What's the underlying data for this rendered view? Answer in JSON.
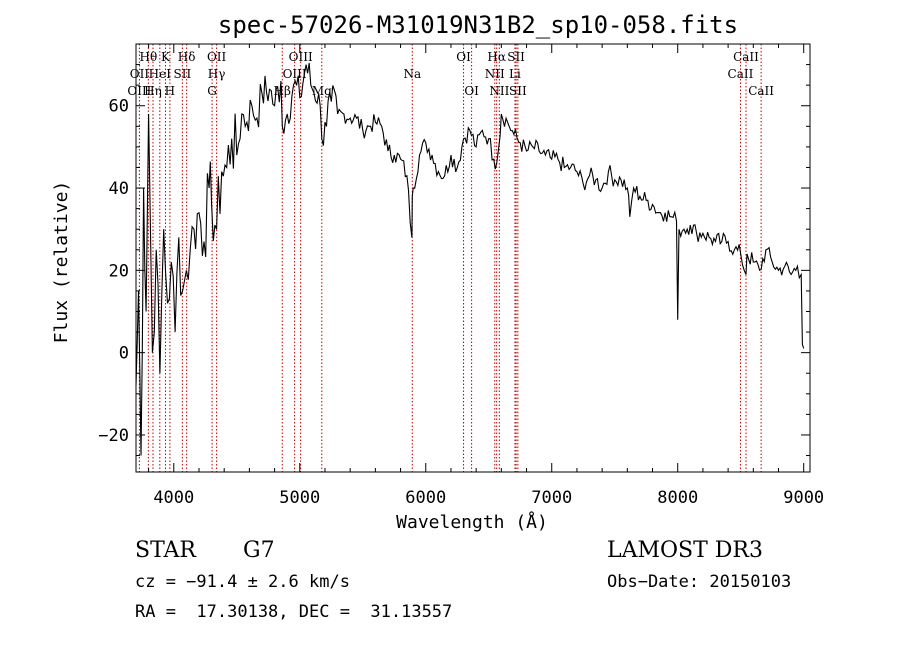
{
  "chart_data": {
    "type": "line",
    "title": "spec-57026-M31019N31B2_sp10-058.fits",
    "xlabel": "Wavelength (Å)",
    "ylabel": "Flux (relative)",
    "xlim": [
      3700,
      9050
    ],
    "ylim": [
      -29,
      75
    ],
    "xticks": [
      4000,
      5000,
      6000,
      7000,
      8000,
      9000
    ],
    "yticks": [
      -20,
      0,
      20,
      40,
      60
    ],
    "series": [
      {
        "name": "flux",
        "x": [
          3700,
          3720,
          3740,
          3760,
          3780,
          3800,
          3830,
          3860,
          3890,
          3920,
          3950,
          3980,
          4010,
          4040,
          4070,
          4100,
          4130,
          4160,
          4200,
          4240,
          4280,
          4300,
          4340,
          4380,
          4420,
          4460,
          4500,
          4540,
          4580,
          4620,
          4660,
          4700,
          4760,
          4800,
          4850,
          4861,
          4900,
          4950,
          5000,
          5050,
          5100,
          5150,
          5175,
          5200,
          5250,
          5300,
          5350,
          5400,
          5450,
          5500,
          5550,
          5600,
          5650,
          5700,
          5750,
          5800,
          5850,
          5890,
          5893,
          5900,
          5950,
          6000,
          6050,
          6100,
          6150,
          6200,
          6250,
          6300,
          6350,
          6400,
          6450,
          6500,
          6540,
          6563,
          6580,
          6600,
          6650,
          6700,
          6750,
          6800,
          6850,
          6900,
          6950,
          7000,
          7050,
          7100,
          7150,
          7200,
          7250,
          7300,
          7350,
          7400,
          7450,
          7500,
          7550,
          7600,
          7620,
          7650,
          7700,
          7750,
          7800,
          7850,
          7900,
          7950,
          7990,
          8000,
          8010,
          8050,
          8100,
          8150,
          8200,
          8250,
          8300,
          8350,
          8400,
          8450,
          8500,
          8542,
          8550,
          8600,
          8650,
          8700,
          8750,
          8800,
          8850,
          8900,
          8950,
          8980,
          8990,
          9000
        ],
        "values": [
          -8,
          15,
          -25,
          40,
          10,
          58,
          0,
          25,
          -5,
          30,
          12,
          22,
          5,
          28,
          15,
          20,
          25,
          30,
          34,
          27,
          40,
          36,
          30,
          44,
          45,
          52,
          48,
          58,
          56,
          60,
          57,
          63,
          64,
          60,
          66,
          55,
          58,
          65,
          62,
          70,
          64,
          63,
          52,
          56,
          61,
          58,
          58,
          57,
          57,
          54,
          55,
          56,
          55,
          49,
          48,
          47,
          43,
          28,
          38,
          40,
          48,
          51,
          48,
          44,
          43,
          48,
          45,
          52,
          54,
          50,
          54,
          52,
          47,
          46,
          50,
          58,
          56,
          53,
          51,
          49,
          50,
          49,
          48,
          47,
          47,
          45,
          45,
          44,
          41,
          43,
          42,
          40,
          44,
          42,
          42,
          40,
          33,
          40,
          38,
          37,
          36,
          34,
          34,
          33,
          32,
          8,
          30,
          30,
          31,
          29,
          29,
          28,
          27,
          27,
          27,
          25,
          24,
          19,
          24,
          22,
          20,
          25,
          22,
          20,
          21,
          19,
          21,
          19,
          2,
          1
        ]
      }
    ],
    "annotations": [
      {
        "label": "Hθ",
        "x": 3798,
        "row": 0
      },
      {
        "label": "K",
        "x": 3934,
        "row": 0
      },
      {
        "label": "Hδ",
        "x": 4102,
        "row": 0
      },
      {
        "label": "OII",
        "x": 4340,
        "row": 0
      },
      {
        "label": "OIII",
        "x": 5007,
        "row": 0
      },
      {
        "label": "OI",
        "x": 6300,
        "row": 0
      },
      {
        "label": "Hα",
        "x": 6563,
        "row": 0
      },
      {
        "label": "SII",
        "x": 6717,
        "row": 0
      },
      {
        "label": "CaII",
        "x": 8542,
        "row": 0
      },
      {
        "label": "OII",
        "x": 3727,
        "row": 1
      },
      {
        "label": "HeI",
        "x": 3889,
        "row": 1
      },
      {
        "label": "SII",
        "x": 4068,
        "row": 1
      },
      {
        "label": "Hγ",
        "x": 4340,
        "row": 1
      },
      {
        "label": "OIII",
        "x": 4959,
        "row": 1
      },
      {
        "label": "Na",
        "x": 5893,
        "row": 1
      },
      {
        "label": "NII",
        "x": 6548,
        "row": 1
      },
      {
        "label": "Li",
        "x": 6708,
        "row": 1
      },
      {
        "label": "CaII",
        "x": 8498,
        "row": 1
      },
      {
        "label": "OIII",
        "x": 3727,
        "row": 2
      },
      {
        "label": "Hη",
        "x": 3835,
        "row": 2
      },
      {
        "label": "H",
        "x": 3969,
        "row": 2
      },
      {
        "label": "G",
        "x": 4304,
        "row": 2
      },
      {
        "label": "Hβ",
        "x": 4861,
        "row": 2
      },
      {
        "label": "Mg",
        "x": 5175,
        "row": 2
      },
      {
        "label": "OI",
        "x": 6364,
        "row": 2
      },
      {
        "label": "NII",
        "x": 6584,
        "row": 2
      },
      {
        "label": "SII",
        "x": 6731,
        "row": 2
      },
      {
        "label": "CaII",
        "x": 8662,
        "row": 2
      }
    ],
    "line_marks": [
      3727,
      3798,
      3835,
      3889,
      3934,
      3969,
      4068,
      4102,
      4304,
      4340,
      4861,
      4959,
      5007,
      5175,
      5893,
      6300,
      6364,
      6548,
      6563,
      6584,
      6708,
      6717,
      6731,
      8498,
      8542,
      8662
    ]
  },
  "colors": {
    "line_mark": "#c00000",
    "spectrum": "#000000"
  },
  "info": {
    "object_class": "STAR",
    "subclass": "G7",
    "survey": "LAMOST DR3",
    "cz": "cz = −91.4 ± 2.6 km/s",
    "obs_date": "Obs−Date: 20150103",
    "coords": "RA =  17.30138, DEC =  31.13557"
  }
}
